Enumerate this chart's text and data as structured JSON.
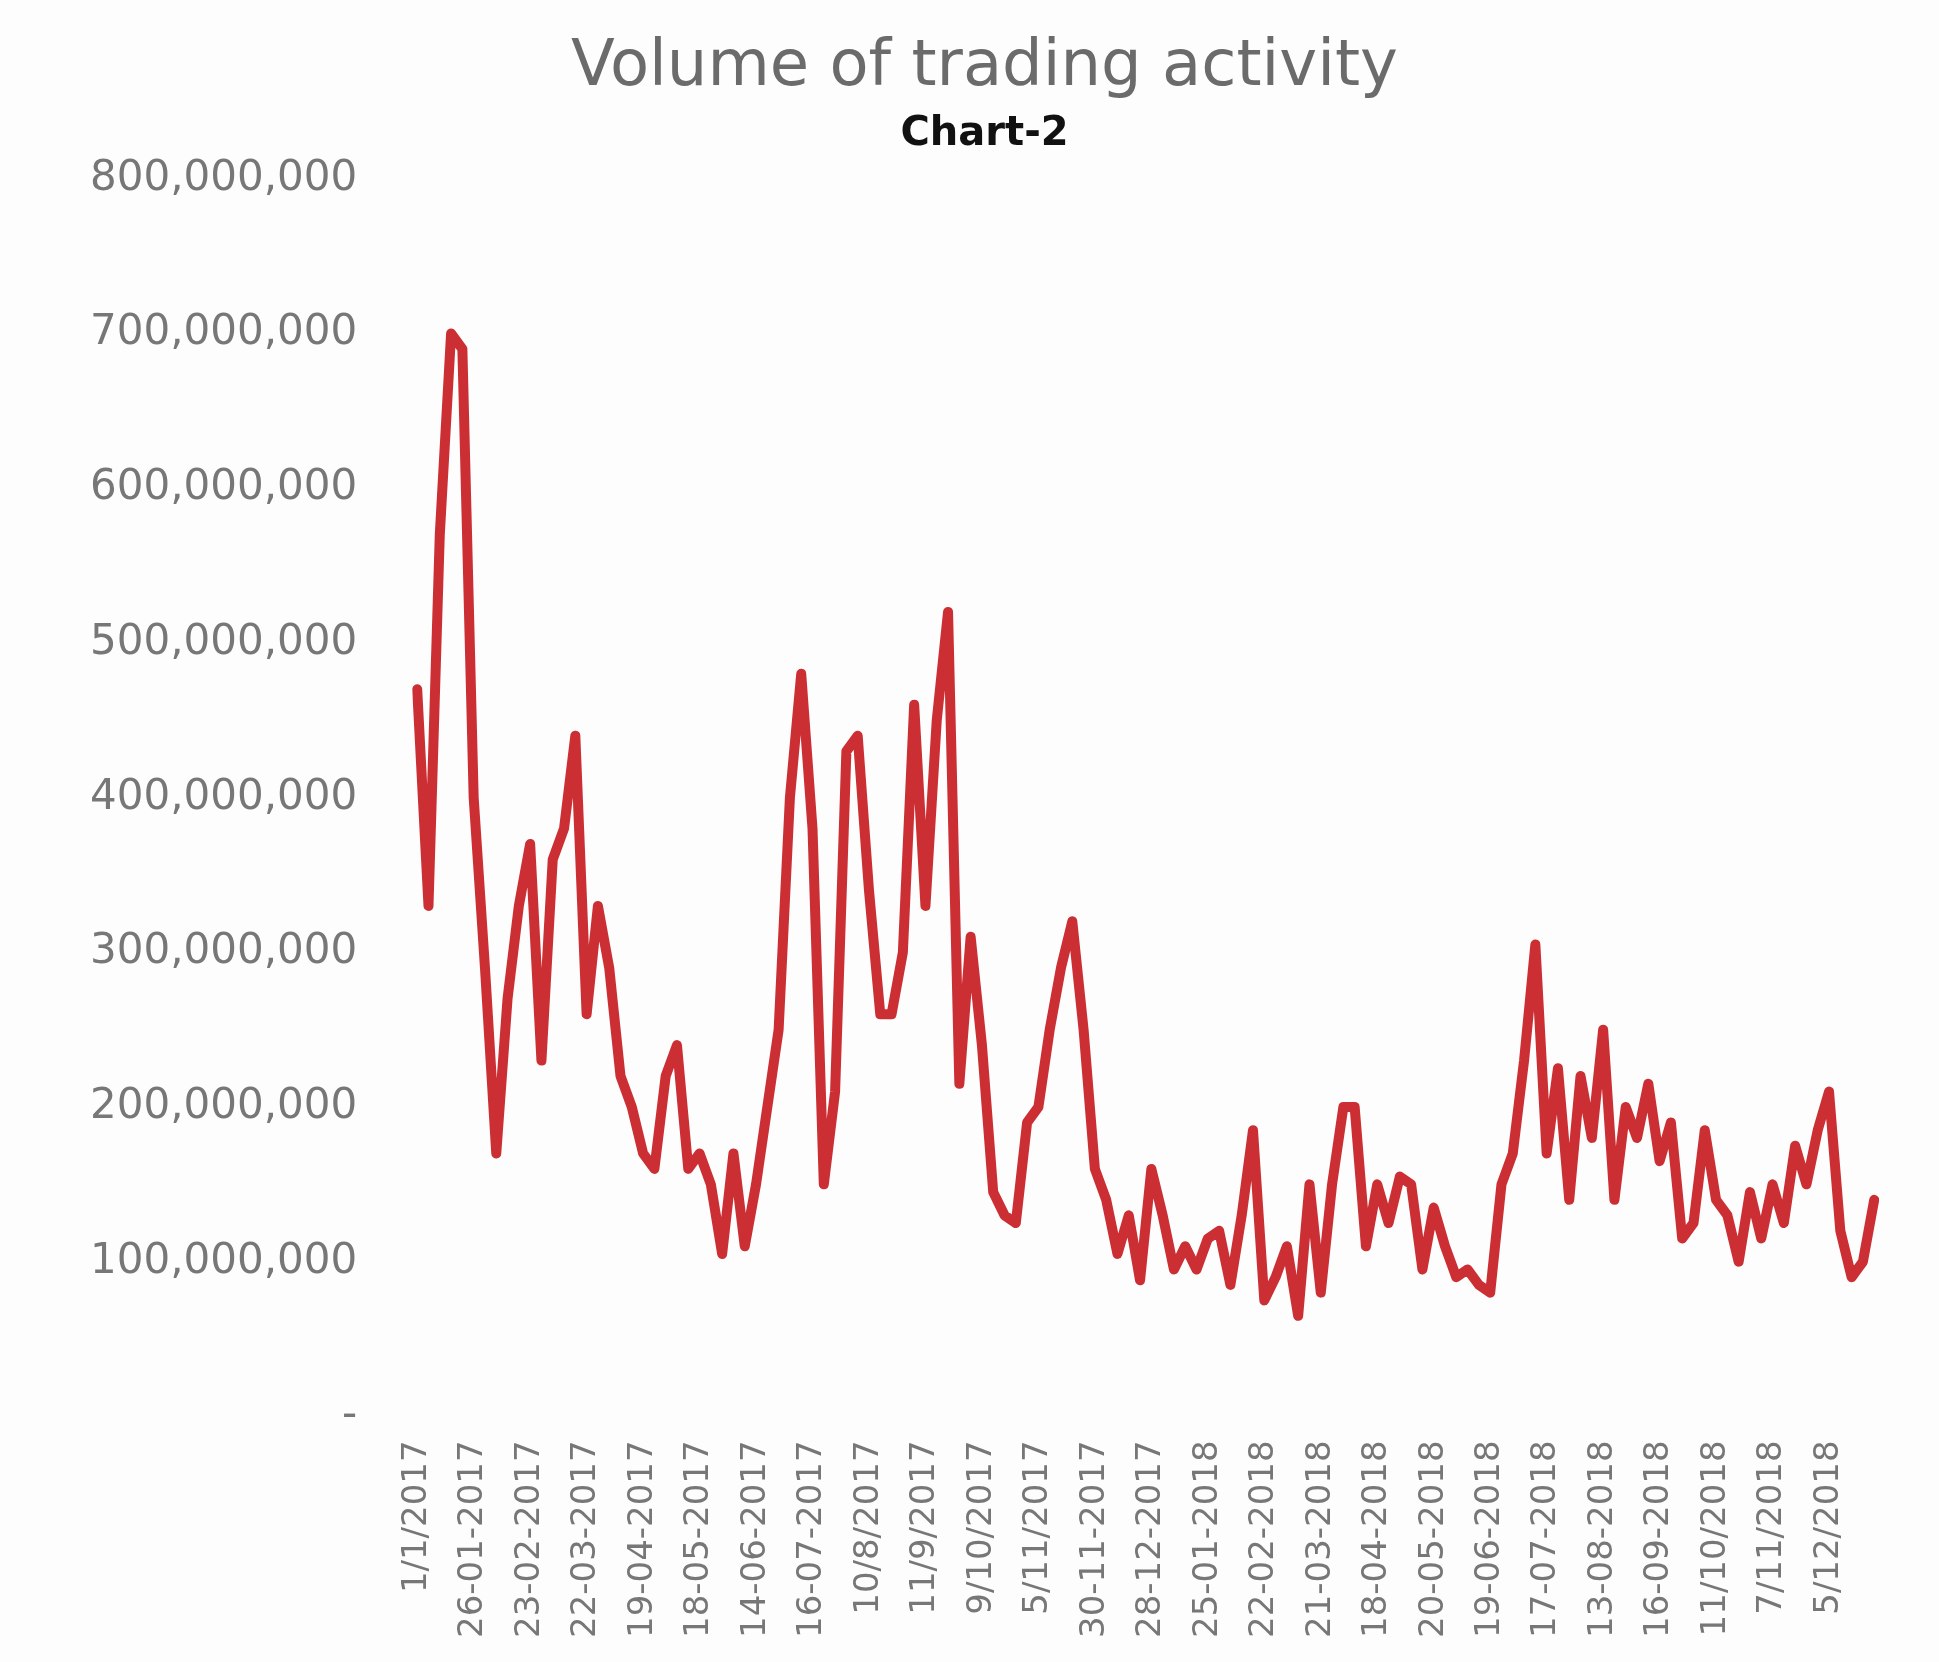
{
  "chart_data": {
    "type": "line",
    "title": "Volume of trading activity",
    "subtitle": "Chart-2",
    "categories": [
      "1/1/2017",
      null,
      null,
      null,
      null,
      "26-01-2017",
      null,
      null,
      null,
      null,
      "23-02-2017",
      null,
      null,
      null,
      null,
      "22-03-2017",
      null,
      null,
      null,
      null,
      "19-04-2017",
      null,
      null,
      null,
      null,
      "18-05-2017",
      null,
      null,
      null,
      null,
      "14-06-2017",
      null,
      null,
      null,
      null,
      "16-07-2017",
      null,
      null,
      null,
      null,
      "10/8/2017",
      null,
      null,
      null,
      null,
      "11/9/2017",
      null,
      null,
      null,
      null,
      "9/10/2017",
      null,
      null,
      null,
      null,
      "5/11/2017",
      null,
      null,
      null,
      null,
      "30-11-2017",
      null,
      null,
      null,
      null,
      "28-12-2017",
      null,
      null,
      null,
      null,
      "25-01-2018",
      null,
      null,
      null,
      null,
      "22-02-2018",
      null,
      null,
      null,
      null,
      "21-03-2018",
      null,
      null,
      null,
      null,
      "18-04-2018",
      null,
      null,
      null,
      null,
      "20-05-2018",
      null,
      null,
      null,
      null,
      "19-06-2018",
      null,
      null,
      null,
      null,
      "17-07-2018",
      null,
      null,
      null,
      null,
      "13-08-2018",
      null,
      null,
      null,
      null,
      "16-09-2018",
      null,
      null,
      null,
      null,
      "11/10/2018",
      null,
      null,
      null,
      null,
      "7/11/2018",
      null,
      null,
      null,
      null,
      "5/12/2018",
      null,
      null,
      null,
      null
    ],
    "series": [
      {
        "color": "#cc2f33",
        "values": [
          470000000,
          330000000,
          570000000,
          700000000,
          690000000,
          400000000,
          290000000,
          170000000,
          270000000,
          330000000,
          370000000,
          230000000,
          360000000,
          380000000,
          440000000,
          260000000,
          330000000,
          290000000,
          220000000,
          200000000,
          170000000,
          160000000,
          220000000,
          240000000,
          160000000,
          170000000,
          150000000,
          105000000,
          170000000,
          110000000,
          150000000,
          200000000,
          250000000,
          400000000,
          480000000,
          380000000,
          150000000,
          210000000,
          430000000,
          440000000,
          340000000,
          260000000,
          260000000,
          300000000,
          460000000,
          330000000,
          450000000,
          520000000,
          215000000,
          310000000,
          240000000,
          145000000,
          130000000,
          125000000,
          190000000,
          200000000,
          250000000,
          290000000,
          320000000,
          250000000,
          160000000,
          140000000,
          105000000,
          130000000,
          88000000,
          160000000,
          130000000,
          95000000,
          110000000,
          95000000,
          115000000,
          120000000,
          85000000,
          130000000,
          185000000,
          75000000,
          90000000,
          110000000,
          65000000,
          150000000,
          80000000,
          150000000,
          200000000,
          200000000,
          110000000,
          150000000,
          125000000,
          155000000,
          150000000,
          95000000,
          135000000,
          110000000,
          90000000,
          95000000,
          85000000,
          80000000,
          150000000,
          170000000,
          230000000,
          305000000,
          170000000,
          225000000,
          140000000,
          220000000,
          180000000,
          250000000,
          140000000,
          200000000,
          180000000,
          215000000,
          165000000,
          190000000,
          115000000,
          125000000,
          185000000,
          140000000,
          130000000,
          100000000,
          145000000,
          115000000,
          150000000,
          125000000,
          175000000,
          150000000,
          185000000,
          210000000,
          120000000,
          90000000,
          100000000,
          140000000
        ]
      }
    ],
    "ylim": [
      0,
      800000000
    ],
    "yticks": [
      {
        "value": 0,
        "label": "-"
      },
      {
        "value": 100000000,
        "label": "100,000,000"
      },
      {
        "value": 200000000,
        "label": "200,000,000"
      },
      {
        "value": 300000000,
        "label": "300,000,000"
      },
      {
        "value": 400000000,
        "label": "400,000,000"
      },
      {
        "value": 500000000,
        "label": "500,000,000"
      },
      {
        "value": 600000000,
        "label": "600,000,000"
      },
      {
        "value": 700000000,
        "label": "700,000,000"
      },
      {
        "value": 800000000,
        "label": "800,000,000"
      }
    ],
    "legend": false,
    "grid": false,
    "marker": "none",
    "line_style": "solid"
  }
}
